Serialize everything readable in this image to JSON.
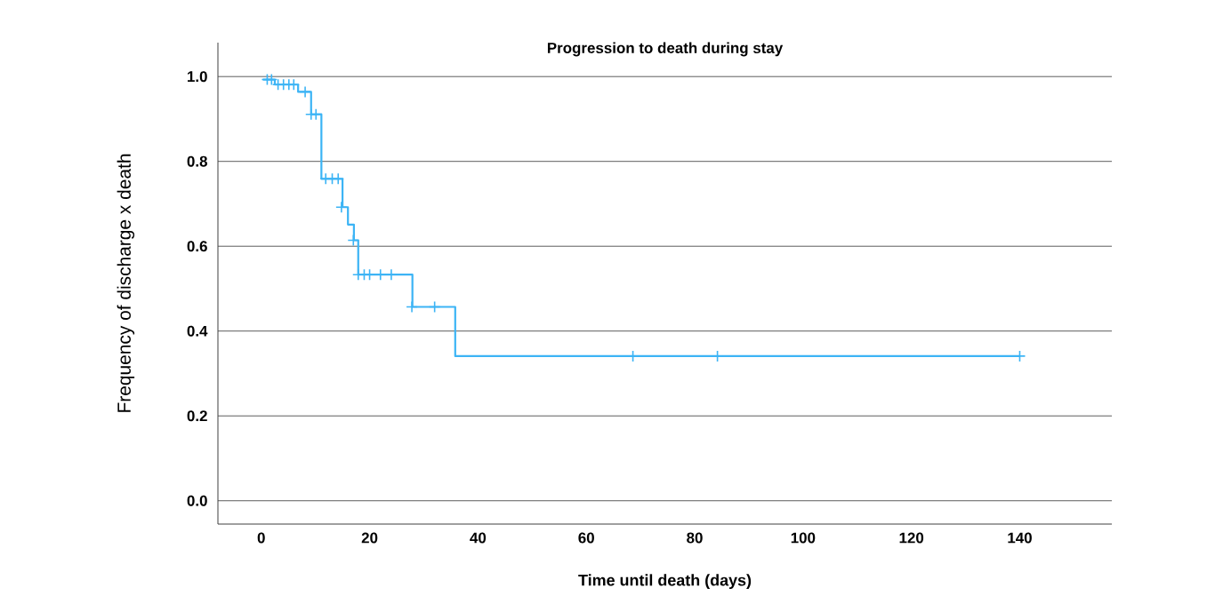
{
  "chart_data": {
    "type": "step",
    "title": "Progression to death during stay",
    "xlabel": "Time until death (days)",
    "ylabel": "Frequency of discharge x death",
    "xlim": [
      -8,
      157
    ],
    "xticks": [
      0,
      20,
      40,
      60,
      80,
      100,
      120,
      140
    ],
    "ylim": [
      -0.055,
      1.08
    ],
    "yticks": [
      {
        "value": 0,
        "label": "0.0"
      },
      {
        "value": 0.2,
        "label": "0.2"
      },
      {
        "value": 0.4,
        "label": "0.4"
      },
      {
        "value": 0.6,
        "label": "0.6"
      },
      {
        "value": 0.8,
        "label": "0.8"
      },
      {
        "value": 1,
        "label": "1.0"
      }
    ],
    "grid": "y",
    "series": [
      {
        "color": "#3cb4f5",
        "marker": "none",
        "x": [
          0.3,
          2.5,
          6.8,
          9.2,
          11.1,
          15.0,
          16.0,
          17.1,
          17.9,
          27.9,
          35.8,
          140
        ],
        "values": [
          0.993,
          0.981,
          0.964,
          0.911,
          0.759,
          0.692,
          0.651,
          0.614,
          0.533,
          0.457,
          0.341,
          0.341
        ]
      },
      {
        "type": "scatter",
        "color": "#3cb4f5",
        "marker": "cross",
        "x": [
          1.1,
          1.9,
          3.1,
          4.1,
          5.1,
          6.0,
          8.1,
          9.2,
          10.1,
          11.9,
          13.1,
          14.2,
          14.8,
          17.0,
          17.9,
          19.0,
          20.0,
          22.0,
          24.0,
          27.8,
          32.0,
          68.6,
          84.2,
          140.0
        ],
        "values": [
          0.993,
          0.993,
          0.981,
          0.981,
          0.981,
          0.981,
          0.964,
          0.911,
          0.911,
          0.759,
          0.759,
          0.759,
          0.692,
          0.614,
          0.533,
          0.533,
          0.533,
          0.533,
          0.533,
          0.457,
          0.457,
          0.341,
          0.341,
          0.341
        ]
      }
    ]
  }
}
